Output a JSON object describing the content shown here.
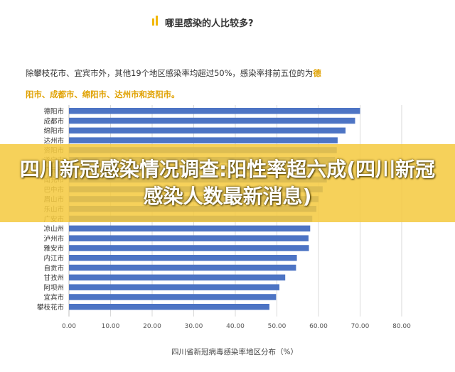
{
  "heading": "哪里感染的人比较多?",
  "intro": {
    "text": "除攀枝花市、宜宾市外，其他19个地区感染率均超过50%，感染率排前五位的为",
    "highlight_a": "德",
    "highlight_b": "阳市、成都市、绵阳市、达州市和资阳市。"
  },
  "banner": {
    "text": "四川新冠感染情况调查:阳性率超六成(四川新冠感染人数最新消息)"
  },
  "colors": {
    "bar": "#4d74c4",
    "accent": "#f2b705",
    "banner": "#f4c93f"
  },
  "chart_data": {
    "type": "bar",
    "orientation": "horizontal",
    "title": "",
    "xlabel": "四川省新冠病毒感染率地区分布（%）",
    "ylabel": "",
    "xlim": [
      0,
      80
    ],
    "xticks": [
      "0.00",
      "10.00",
      "20.00",
      "30.00",
      "40.00",
      "50.00",
      "60.00",
      "70.00",
      "80.00"
    ],
    "grid": true,
    "categories": [
      "德阳市",
      "成都市",
      "绵阳市",
      "达州市",
      "资阳市",
      "遂宁市",
      "广元市",
      "南充市",
      "巴中市",
      "眉山市",
      "乐山市",
      "广安市",
      "凉山州",
      "泸州市",
      "雅安市",
      "内江市",
      "自贡市",
      "甘孜州",
      "阿坝州",
      "宜宾市",
      "攀枝花市"
    ],
    "values": [
      70.0,
      68.8,
      66.5,
      64.6,
      64.4,
      64.0,
      63.0,
      62.0,
      61.0,
      60.0,
      59.5,
      58.5,
      58.0,
      57.6,
      57.7,
      54.8,
      54.6,
      52.0,
      50.6,
      49.8,
      48.2
    ]
  }
}
